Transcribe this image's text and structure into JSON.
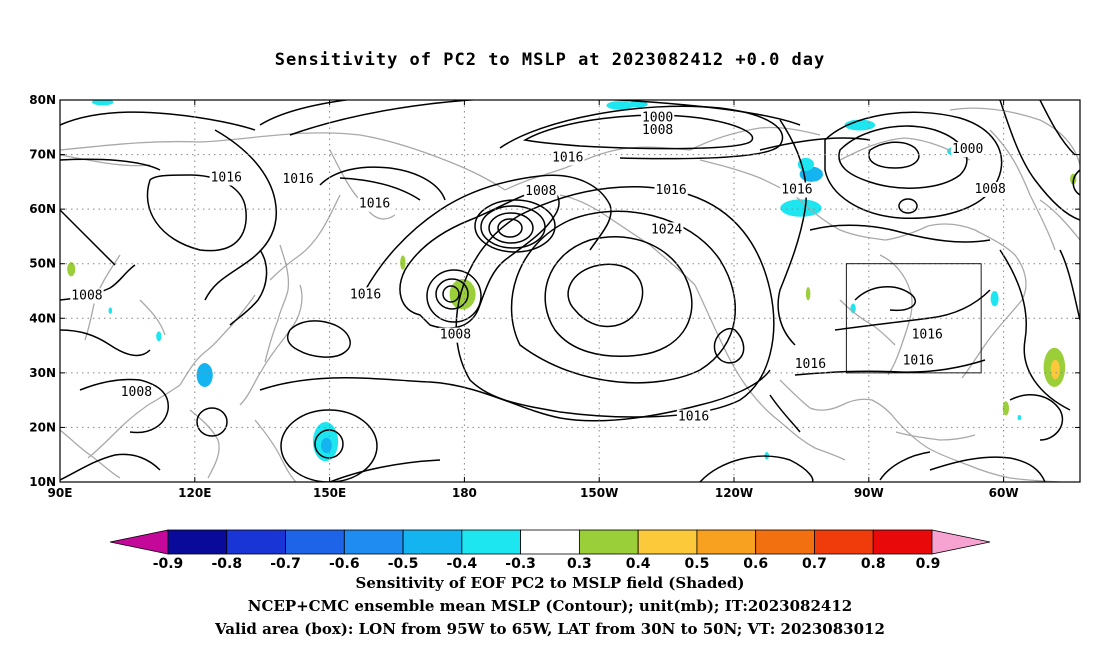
{
  "title": "Sensitivity of PC2 to MSLP at 2023082412 +0.0 day",
  "captions": [
    "Sensitivity of EOF PC2 to MSLP field (Shaded)",
    "NCEP+CMC ensemble mean MSLP (Contour); unit(mb); IT:2023082412",
    "Valid area (box): LON from 95W to 65W, LAT from 30N to 50N; VT: 2023083012"
  ],
  "axes": {
    "lon_labels": [
      {
        "text": "90E",
        "lon": 90
      },
      {
        "text": "120E",
        "lon": 120
      },
      {
        "text": "150E",
        "lon": 150
      },
      {
        "text": "180",
        "lon": 180
      },
      {
        "text": "150W",
        "lon": 210
      },
      {
        "text": "120W",
        "lon": 240
      },
      {
        "text": "90W",
        "lon": 270
      },
      {
        "text": "60W",
        "lon": 300
      }
    ],
    "lat_labels": [
      {
        "text": "80N",
        "lat": 80
      },
      {
        "text": "70N",
        "lat": 70
      },
      {
        "text": "60N",
        "lat": 60
      },
      {
        "text": "50N",
        "lat": 50
      },
      {
        "text": "40N",
        "lat": 40
      },
      {
        "text": "30N",
        "lat": 30
      },
      {
        "text": "20N",
        "lat": 20
      },
      {
        "text": "10N",
        "lat": 10
      }
    ],
    "lon_range": [
      90,
      317
    ],
    "lat_range": [
      10,
      80
    ],
    "grid": "dotted"
  },
  "valid_box": {
    "lon_min": 265,
    "lon_max": 295,
    "lat_min": 30,
    "lat_max": 50
  },
  "contour_labels": [
    {
      "text": "1000",
      "lon": 223,
      "lat": 76.8
    },
    {
      "text": "1008",
      "lon": 223,
      "lat": 74.5
    },
    {
      "text": "1016",
      "lon": 203,
      "lat": 69.5
    },
    {
      "text": "1016",
      "lon": 127,
      "lat": 65.8
    },
    {
      "text": "1016",
      "lon": 143,
      "lat": 65.5
    },
    {
      "text": "1008",
      "lon": 197,
      "lat": 63.3
    },
    {
      "text": "1016",
      "lon": 160,
      "lat": 61.0
    },
    {
      "text": "1016",
      "lon": 226,
      "lat": 63.5
    },
    {
      "text": "1016",
      "lon": 254,
      "lat": 63.6
    },
    {
      "text": "1024",
      "lon": 225,
      "lat": 56.3
    },
    {
      "text": "1000",
      "lon": 292,
      "lat": 71.0
    },
    {
      "text": "1008",
      "lon": 297,
      "lat": 63.7
    },
    {
      "text": "1008",
      "lon": 96,
      "lat": 44.2
    },
    {
      "text": "1016",
      "lon": 158,
      "lat": 44.4
    },
    {
      "text": "1008",
      "lon": 178,
      "lat": 37.0
    },
    {
      "text": "1016",
      "lon": 283,
      "lat": 37.0
    },
    {
      "text": "1016",
      "lon": 281,
      "lat": 32.3
    },
    {
      "text": "1016",
      "lon": 257,
      "lat": 31.6
    },
    {
      "text": "1008",
      "lon": 107,
      "lat": 26.5
    },
    {
      "text": "1016",
      "lon": 231,
      "lat": 22.0
    }
  ],
  "colorbar": {
    "labels": [
      "-0.9",
      "-0.8",
      "-0.7",
      "-0.6",
      "-0.5",
      "-0.4",
      "-0.3",
      "0.3",
      "0.4",
      "0.5",
      "0.6",
      "0.7",
      "0.8",
      "0.9"
    ],
    "colors": [
      "#0a0a9a",
      "#1a35d6",
      "#1e64e8",
      "#1e8cf0",
      "#14b4f0",
      "#1ee6f0",
      "#ffffff",
      "#9bcf3a",
      "#fbc93a",
      "#f8a020",
      "#f27010",
      "#f03c0a",
      "#e80a0a"
    ],
    "low_extend_color": "#c3089a",
    "high_extend_color": "#f7a3d2"
  },
  "shaded_regions": [
    {
      "lon": 180.3,
      "lat": 44.5,
      "rlon": 1.6,
      "rlat": 2.2,
      "color": "#fbc93a"
    },
    {
      "lon": 179.6,
      "lat": 44.4,
      "rlon": 2.9,
      "rlat": 2.8,
      "color": "#9bcf3a"
    },
    {
      "lon": 149.1,
      "lat": 17.4,
      "rlon": 2.8,
      "rlat": 3.6,
      "color": "#1ee6f0"
    },
    {
      "lon": 149.3,
      "lat": 16.7,
      "rlon": 1.2,
      "rlat": 1.4,
      "color": "#14b4f0"
    },
    {
      "lon": 311.3,
      "lat": 31.0,
      "rlon": 2.4,
      "rlat": 3.6,
      "color": "#9bcf3a"
    },
    {
      "lon": 311.5,
      "lat": 30.6,
      "rlon": 1.0,
      "rlat": 1.8,
      "color": "#fbc93a"
    },
    {
      "lon": 254.9,
      "lat": 60.2,
      "rlon": 4.6,
      "rlat": 1.6,
      "color": "#1ee6f0"
    },
    {
      "lon": 257.2,
      "lat": 66.4,
      "rlon": 2.6,
      "rlat": 1.4,
      "color": "#14b4f0"
    },
    {
      "lon": 256.0,
      "lat": 68.2,
      "rlon": 1.8,
      "rlat": 1.2,
      "color": "#1ee6f0"
    },
    {
      "lon": 289.6,
      "lat": 70.6,
      "rlon": 2.2,
      "rlat": 0.9,
      "color": "#1ee6f0"
    },
    {
      "lon": 268.0,
      "lat": 75.4,
      "rlon": 3.4,
      "rlat": 1.0,
      "color": "#1ee6f0"
    },
    {
      "lon": 214.6,
      "lat": 79.0,
      "rlon": 3.0,
      "rlat": 0.8,
      "color": "#1ee6f0"
    },
    {
      "lon": 218.6,
      "lat": 79.2,
      "rlon": 2.2,
      "rlat": 0.6,
      "color": "#1ee6f0"
    },
    {
      "lon": 99.5,
      "lat": 79.6,
      "rlon": 2.4,
      "rlat": 0.6,
      "color": "#1ee6f0"
    },
    {
      "lon": 92.5,
      "lat": 49.0,
      "rlon": 0.9,
      "rlat": 1.3,
      "color": "#9bcf3a"
    },
    {
      "lon": 166.3,
      "lat": 50.2,
      "rlon": 0.6,
      "rlat": 1.3,
      "color": "#9bcf3a"
    },
    {
      "lon": 298.0,
      "lat": 43.6,
      "rlon": 0.9,
      "rlat": 1.4,
      "color": "#1ee6f0"
    },
    {
      "lon": 266.5,
      "lat": 41.8,
      "rlon": 0.6,
      "rlat": 0.9,
      "color": "#1ee6f0"
    },
    {
      "lon": 256.5,
      "lat": 44.5,
      "rlon": 0.5,
      "rlat": 1.2,
      "color": "#9bcf3a"
    },
    {
      "lon": 122.2,
      "lat": 29.6,
      "rlon": 1.8,
      "rlat": 2.2,
      "color": "#14b4f0"
    },
    {
      "lon": 300.5,
      "lat": 23.5,
      "rlon": 0.7,
      "rlat": 1.3,
      "color": "#9bcf3a"
    },
    {
      "lon": 315.5,
      "lat": 65.5,
      "rlon": 0.7,
      "rlat": 1.0,
      "color": "#9bcf3a"
    },
    {
      "lon": 112.0,
      "lat": 36.7,
      "rlon": 0.6,
      "rlat": 0.9,
      "color": "#1ee6f0"
    },
    {
      "lon": 101.2,
      "lat": 41.4,
      "rlon": 0.4,
      "rlat": 0.6,
      "color": "#1ee6f0"
    },
    {
      "lon": 247.3,
      "lat": 14.8,
      "rlon": 0.5,
      "rlat": 0.7,
      "color": "#1ee6f0"
    },
    {
      "lon": 303.5,
      "lat": 21.8,
      "rlon": 0.4,
      "rlat": 0.5,
      "color": "#1ee6f0"
    }
  ]
}
